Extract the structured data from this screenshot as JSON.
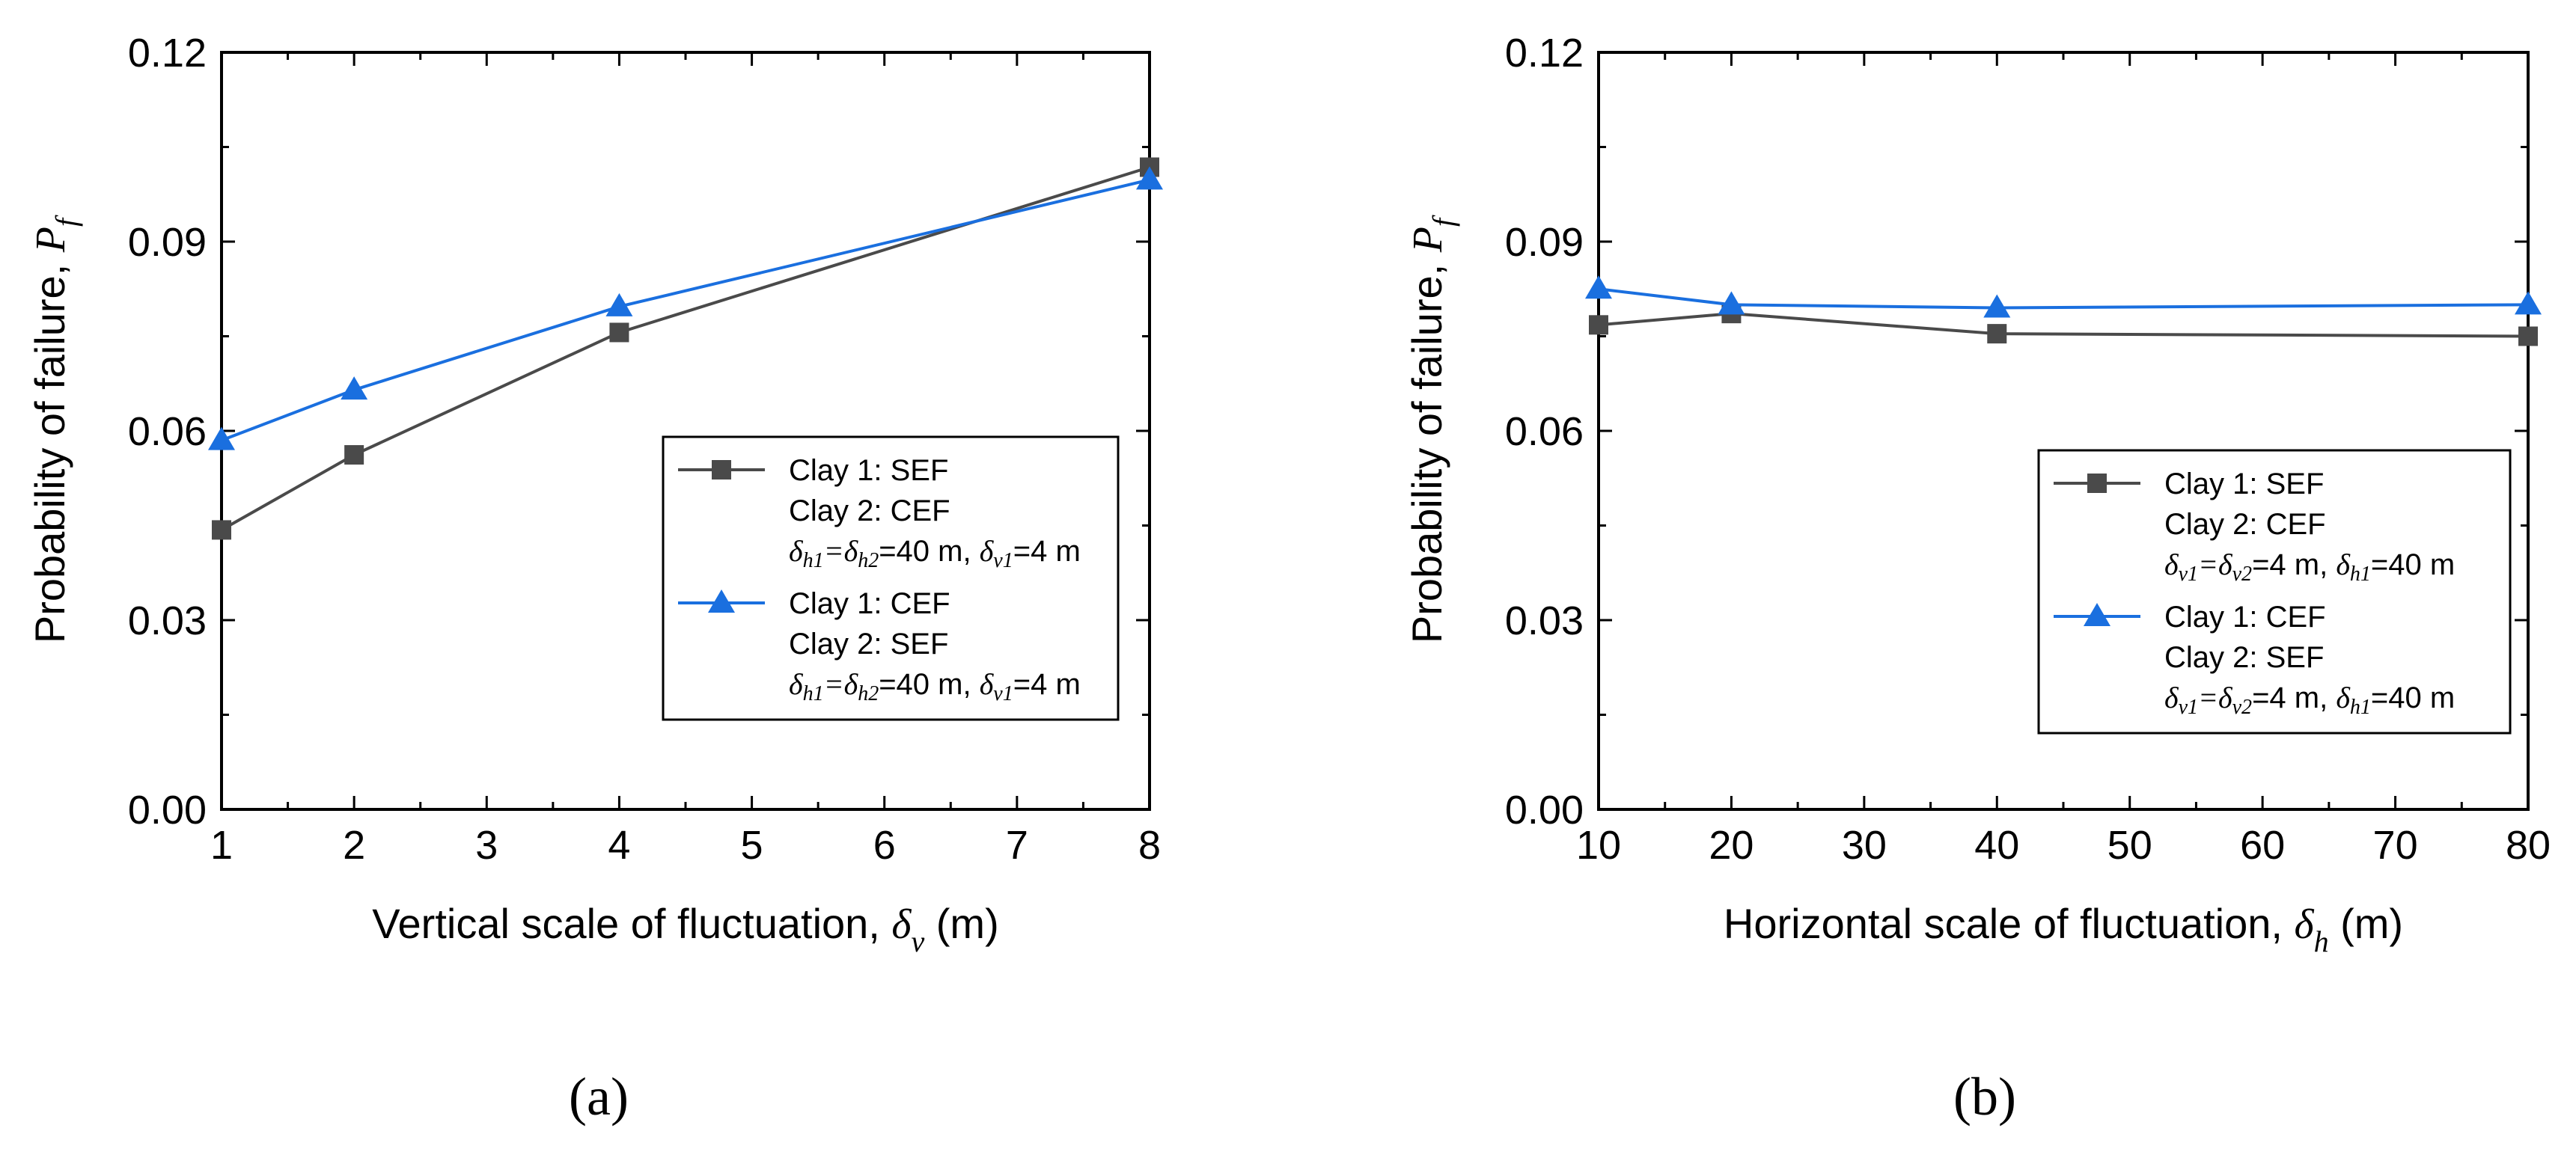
{
  "chart_data": [
    {
      "type": "line",
      "panel_label": "(a)",
      "xlabel": "Vertical scale of fluctuation, ",
      "xlabel_symbol": "δ",
      "xlabel_sub": "v",
      "xlabel_unit": " (m)",
      "ylabel": "Probability of failure, ",
      "ylabel_symbol": "P",
      "ylabel_sub": "f",
      "xlim": [
        1,
        8
      ],
      "ylim": [
        0,
        0.12
      ],
      "x_ticks": [
        "1",
        "2",
        "3",
        "4",
        "5",
        "6",
        "7",
        "8"
      ],
      "x_tick_values": [
        1,
        2,
        3,
        4,
        5,
        6,
        7,
        8
      ],
      "y_ticks": [
        "0.00",
        "0.03",
        "0.06",
        "0.09",
        "0.12"
      ],
      "y_tick_values": [
        0,
        0.03,
        0.06,
        0.09,
        0.12
      ],
      "legend_position": "right",
      "series": [
        {
          "name": "Clay 1: SEF",
          "legend_lines": [
            "Clay 1: SEF",
            "Clay 2: CEF"
          ],
          "legend_params": {
            "s1": "δ",
            "b1": "h1",
            "s2": "δ",
            "b2": "h2",
            "mid": "=40 m, ",
            "s3": "δ",
            "b3": "v1",
            "end": "=4 m"
          },
          "marker": "square",
          "color": "#4a4a4a",
          "x": [
            1,
            2,
            4,
            8
          ],
          "y": [
            0.0443,
            0.0562,
            0.0756,
            0.1018
          ]
        },
        {
          "name": "Clay 1: CEF",
          "legend_lines": [
            "Clay 1: CEF",
            "Clay 2: SEF"
          ],
          "legend_params": {
            "s1": "δ",
            "b1": "h1",
            "s2": "δ",
            "b2": "h2",
            "mid": "=40 m, ",
            "s3": "δ",
            "b3": "v1",
            "end": "=4 m"
          },
          "marker": "triangle",
          "color": "#1a6fdf",
          "x": [
            1,
            2,
            4,
            8
          ],
          "y": [
            0.0585,
            0.0665,
            0.0797,
            0.0998
          ]
        }
      ]
    },
    {
      "type": "line",
      "panel_label": "(b)",
      "xlabel": "Horizontal scale of fluctuation, ",
      "xlabel_symbol": "δ",
      "xlabel_sub": "h",
      "xlabel_unit": " (m)",
      "ylabel": "Probability of failure, ",
      "ylabel_symbol": "P",
      "ylabel_sub": "f",
      "xlim": [
        10,
        80
      ],
      "ylim": [
        0,
        0.12
      ],
      "x_ticks": [
        "10",
        "20",
        "30",
        "40",
        "50",
        "60",
        "70",
        "80"
      ],
      "x_tick_values": [
        10,
        20,
        30,
        40,
        50,
        60,
        70,
        80
      ],
      "y_ticks": [
        "0.00",
        "0.03",
        "0.06",
        "0.09",
        "0.12"
      ],
      "y_tick_values": [
        0,
        0.03,
        0.06,
        0.09,
        0.12
      ],
      "legend_position": "right",
      "series": [
        {
          "name": "Clay 1: SEF",
          "legend_lines": [
            "Clay 1: SEF",
            "Clay 2: CEF"
          ],
          "legend_params": {
            "s1": "δ",
            "b1": "v1",
            "s2": "δ",
            "b2": "v2",
            "mid": "=4 m, ",
            "s3": "δ",
            "b3": "h1",
            "end": "=40 m"
          },
          "marker": "square",
          "color": "#4a4a4a",
          "x": [
            10,
            20,
            40,
            80
          ],
          "y": [
            0.0768,
            0.0786,
            0.0754,
            0.075
          ]
        },
        {
          "name": "Clay 1: CEF",
          "legend_lines": [
            "Clay 1: CEF",
            "Clay 2: SEF"
          ],
          "legend_params": {
            "s1": "δ",
            "b1": "v1",
            "s2": "δ",
            "b2": "v2",
            "mid": "=4 m, ",
            "s3": "δ",
            "b3": "h1",
            "end": "=40 m"
          },
          "marker": "triangle",
          "color": "#1a6fdf",
          "x": [
            10,
            20,
            40,
            80
          ],
          "y": [
            0.0825,
            0.08,
            0.0795,
            0.08
          ]
        }
      ]
    }
  ]
}
